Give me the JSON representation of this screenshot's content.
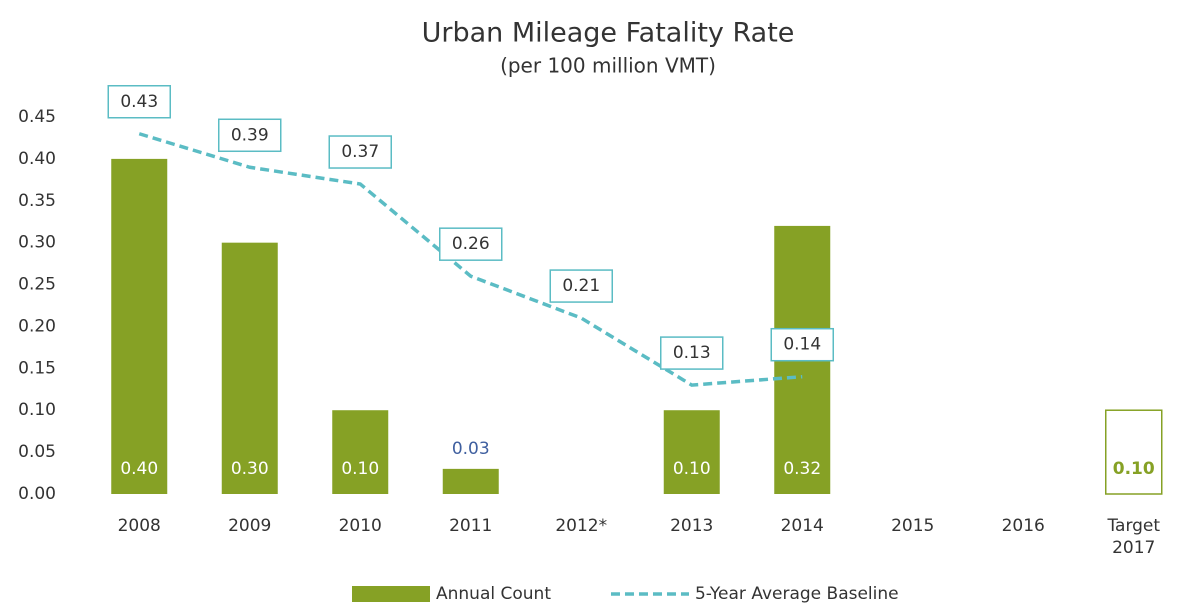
{
  "chart_data": {
    "type": "bar",
    "title": "Urban Mileage Fatality Rate",
    "subtitle": "(per 100 million VMT)",
    "categories": [
      "2008",
      "2009",
      "2010",
      "2011",
      "2012*",
      "2013",
      "2014",
      "2015",
      "2016",
      "Target 2017"
    ],
    "series": [
      {
        "name": "Annual Count",
        "type": "bar",
        "color": "#86a125",
        "values": [
          0.4,
          0.3,
          0.1,
          0.03,
          null,
          0.1,
          0.32,
          null,
          null,
          0.1
        ],
        "value_labels": [
          "0.40",
          "0.30",
          "0.10",
          "0.03",
          null,
          "0.10",
          "0.32",
          null,
          null,
          "0.10"
        ],
        "outline_last": true
      },
      {
        "name": "5-Year Average Baseline",
        "type": "line",
        "color": "#5bbcc4",
        "dashed": true,
        "values": [
          0.43,
          0.39,
          0.37,
          0.26,
          0.21,
          0.13,
          0.14,
          null,
          null,
          null
        ],
        "value_labels": [
          "0.43",
          "0.39",
          "0.37",
          "0.26",
          "0.21",
          "0.13",
          "0.14",
          null,
          null,
          null
        ]
      }
    ],
    "ylim": [
      0,
      0.45
    ],
    "yticks": [
      {
        "value": 0,
        "label": "0.00"
      },
      {
        "value": 0.05,
        "label": "0.05"
      },
      {
        "value": 0.1,
        "label": "0.10"
      },
      {
        "value": 0.15,
        "label": "0.15"
      },
      {
        "value": 0.2,
        "label": "0.20"
      },
      {
        "value": 0.25,
        "label": "0.25"
      },
      {
        "value": 0.3,
        "label": "0.30"
      },
      {
        "value": 0.35,
        "label": "0.35"
      },
      {
        "value": 0.4,
        "label": "0.40"
      },
      {
        "value": 0.45,
        "label": "0.45"
      }
    ],
    "grid": false,
    "legend": "bottom"
  }
}
